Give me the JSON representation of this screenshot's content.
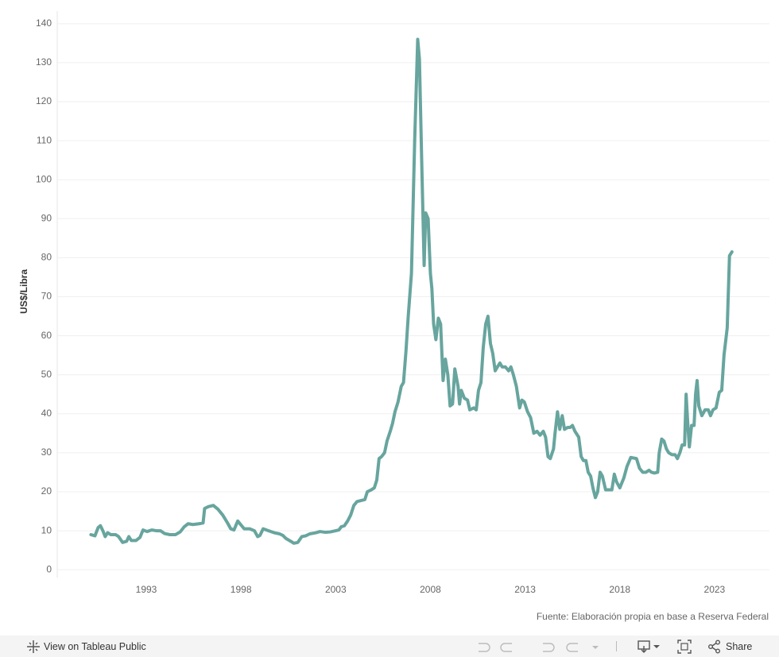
{
  "chart_data": {
    "type": "line",
    "y_label": "US$/Libra",
    "source": "Fuente: Elaboración propia en base a Reserva Federal",
    "color": "#67a59e",
    "grid": true,
    "xlim": [
      1988.3,
      2025.9
    ],
    "xticks": [
      1993,
      1998,
      2003,
      2008,
      2013,
      2018,
      2023
    ],
    "ylim": [
      -2,
      142
    ],
    "yticks": [
      0,
      10,
      20,
      30,
      40,
      50,
      60,
      70,
      80,
      90,
      100,
      110,
      120,
      130,
      140
    ],
    "x": [
      1990.08,
      1990.29,
      1990.46,
      1990.58,
      1990.71,
      1990.83,
      1990.96,
      1991.13,
      1991.38,
      1991.54,
      1991.75,
      1991.96,
      1992.08,
      1992.21,
      1992.46,
      1992.67,
      1992.83,
      1993.04,
      1993.29,
      1993.54,
      1993.75,
      1993.96,
      1994.25,
      1994.54,
      1994.79,
      1995.0,
      1995.21,
      1995.46,
      1995.79,
      1996.0,
      1996.08,
      1996.29,
      1996.54,
      1996.79,
      1997.04,
      1997.29,
      1997.46,
      1997.63,
      1997.83,
      1998.0,
      1998.17,
      1998.46,
      1998.71,
      1998.88,
      1999.0,
      1999.17,
      1999.46,
      1999.75,
      2000.04,
      2000.21,
      2000.38,
      2000.63,
      2000.79,
      2001.0,
      2001.21,
      2001.42,
      2001.63,
      2001.96,
      2002.17,
      2002.46,
      2002.71,
      2003.0,
      2003.17,
      2003.29,
      2003.46,
      2003.63,
      2003.79,
      2003.96,
      2004.13,
      2004.38,
      2004.54,
      2004.67,
      2004.88,
      2005.04,
      2005.17,
      2005.29,
      2005.42,
      2005.58,
      2005.71,
      2005.88,
      2006.0,
      2006.13,
      2006.29,
      2006.46,
      2006.58,
      2006.71,
      2006.83,
      2007.0,
      2007.17,
      2007.33,
      2007.42,
      2007.54,
      2007.67,
      2007.75,
      2007.88,
      2008.0,
      2008.08,
      2008.17,
      2008.29,
      2008.42,
      2008.54,
      2008.67,
      2008.79,
      2008.92,
      2009.04,
      2009.17,
      2009.29,
      2009.46,
      2009.54,
      2009.63,
      2009.79,
      2009.96,
      2010.08,
      2010.29,
      2010.42,
      2010.54,
      2010.67,
      2010.79,
      2010.92,
      2011.04,
      2011.17,
      2011.29,
      2011.42,
      2011.54,
      2011.67,
      2011.79,
      2011.96,
      2012.13,
      2012.25,
      2012.38,
      2012.54,
      2012.71,
      2012.83,
      2012.96,
      2013.13,
      2013.29,
      2013.46,
      2013.63,
      2013.79,
      2013.96,
      2014.08,
      2014.21,
      2014.33,
      2014.5,
      2014.58,
      2014.71,
      2014.83,
      2014.96,
      2015.08,
      2015.25,
      2015.38,
      2015.5,
      2015.63,
      2015.83,
      2015.96,
      2016.08,
      2016.21,
      2016.33,
      2016.46,
      2016.58,
      2016.71,
      2016.83,
      2016.96,
      2017.08,
      2017.25,
      2017.42,
      2017.58,
      2017.71,
      2017.83,
      2018.0,
      2018.21,
      2018.38,
      2018.58,
      2018.88,
      2019.04,
      2019.21,
      2019.38,
      2019.54,
      2019.67,
      2019.83,
      2020.0,
      2020.08,
      2020.21,
      2020.33,
      2020.46,
      2020.58,
      2020.75,
      2020.92,
      2021.04,
      2021.17,
      2021.29,
      2021.42,
      2021.5,
      2021.58,
      2021.67,
      2021.79,
      2021.92,
      2022.0,
      2022.08,
      2022.17,
      2022.33,
      2022.5,
      2022.67,
      2022.79,
      2022.92,
      2023.08,
      2023.25,
      2023.38,
      2023.5,
      2023.67,
      2023.79,
      2023.92
    ],
    "values": [
      9,
      8.7,
      10.8,
      11.3,
      10,
      8.5,
      9.5,
      9,
      9,
      8.5,
      7,
      7.3,
      8.5,
      7.5,
      7.5,
      8.3,
      10.2,
      9.8,
      10.2,
      10,
      10,
      9.3,
      9,
      9,
      9.7,
      11,
      11.8,
      11.6,
      11.8,
      12,
      15.7,
      16.2,
      16.5,
      15.5,
      14,
      12,
      10.5,
      10.2,
      12.5,
      11.5,
      10.5,
      10.5,
      10,
      8.5,
      8.8,
      10.5,
      10,
      9.5,
      9.2,
      8.8,
      8,
      7.3,
      6.8,
      7,
      8.5,
      8.7,
      9.2,
      9.5,
      9.8,
      9.6,
      9.7,
      10,
      10.2,
      11,
      11.3,
      12.5,
      14,
      16.5,
      17.5,
      17.8,
      18,
      20,
      20.5,
      21,
      23,
      28.5,
      29,
      30,
      33,
      35.5,
      37.5,
      40.5,
      43,
      47,
      48,
      56,
      65,
      76,
      110,
      136,
      131,
      105,
      78,
      91.5,
      90,
      76,
      72,
      63,
      59,
      64.5,
      63,
      48.5,
      54,
      50,
      42,
      42.5,
      51.5,
      47,
      42.5,
      46,
      44,
      43.5,
      41,
      41.5,
      41,
      46,
      48,
      57,
      63,
      65,
      58,
      55.5,
      51,
      52,
      53,
      52,
      52,
      51,
      52,
      50,
      47,
      41.5,
      43.5,
      43,
      40.5,
      39,
      35,
      35.5,
      34.5,
      35.5,
      34,
      29,
      28.5,
      31,
      35,
      40.5,
      36,
      39.5,
      36,
      36.5,
      36.5,
      37,
      35.5,
      34,
      29,
      28,
      28,
      25,
      24,
      21,
      18.5,
      20,
      25,
      24,
      20.5,
      20.5,
      20.5,
      24.5,
      22.5,
      21,
      23.5,
      26.5,
      28.8,
      28.5,
      26,
      25,
      25,
      25.5,
      25,
      24.8,
      25,
      30,
      33.5,
      33,
      31,
      30,
      29.5,
      29.5,
      28.5,
      30,
      32,
      32,
      45,
      38,
      31.5,
      37,
      37,
      45,
      48.5,
      42,
      39.5,
      41,
      41,
      39.5,
      41,
      41.5,
      45.5,
      46,
      55,
      62,
      80.5,
      81.5
    ]
  },
  "toolbar": {
    "view_label": "View on Tableau Public",
    "share_label": "Share"
  }
}
